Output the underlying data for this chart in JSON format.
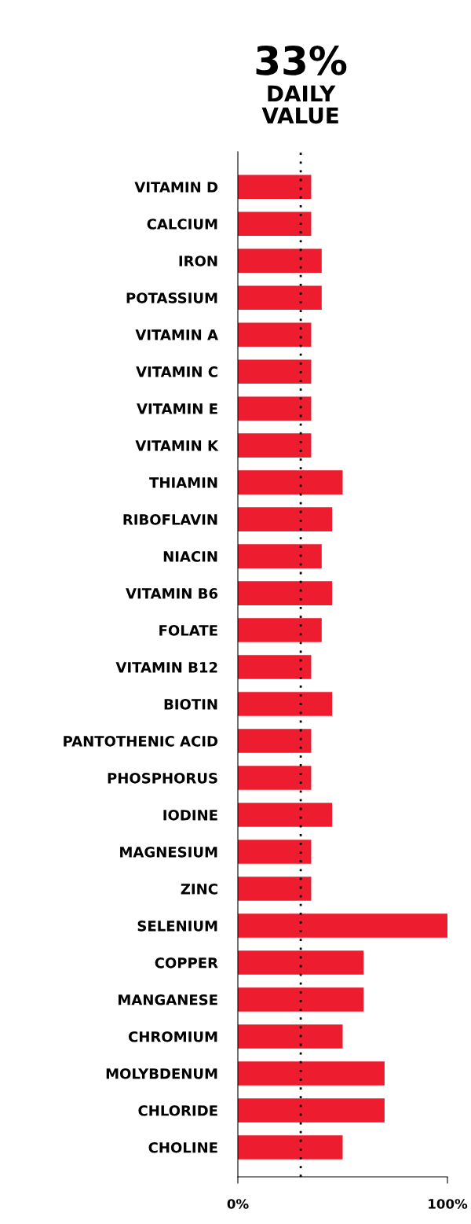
{
  "chart_data": {
    "type": "bar",
    "orientation": "horizontal",
    "title": "33%",
    "subtitle": "DAILY\nVALUE",
    "categories": [
      "VITAMIN D",
      "CALCIUM",
      "IRON",
      "POTASSIUM",
      "VITAMIN A",
      "VITAMIN C",
      "VITAMIN E",
      "VITAMIN K",
      "THIAMIN",
      "RIBOFLAVIN",
      "NIACIN",
      "VITAMIN B6",
      "FOLATE",
      "VITAMIN B12",
      "BIOTIN",
      "PANTOTHENIC ACID",
      "PHOSPHORUS",
      "IODINE",
      "MAGNESIUM",
      "ZINC",
      "SELENIUM",
      "COPPER",
      "MANGANESE",
      "CHROMIUM",
      "MOLYBDENUM",
      "CHLORIDE",
      "CHOLINE"
    ],
    "values": [
      35,
      35,
      40,
      40,
      35,
      35,
      35,
      35,
      50,
      45,
      40,
      45,
      40,
      35,
      45,
      35,
      35,
      45,
      35,
      35,
      100,
      60,
      60,
      50,
      70,
      70,
      50
    ],
    "color": "#ed1c2e",
    "xlim": [
      0,
      100
    ],
    "xticks": [
      {
        "value": 0,
        "label": "0%"
      },
      {
        "value": 100,
        "label": "100%"
      }
    ],
    "ref_lines": [
      {
        "axis": "x",
        "value": 30,
        "color": "#000000",
        "line_style": "dotted"
      }
    ],
    "grid": false,
    "legend": false
  }
}
